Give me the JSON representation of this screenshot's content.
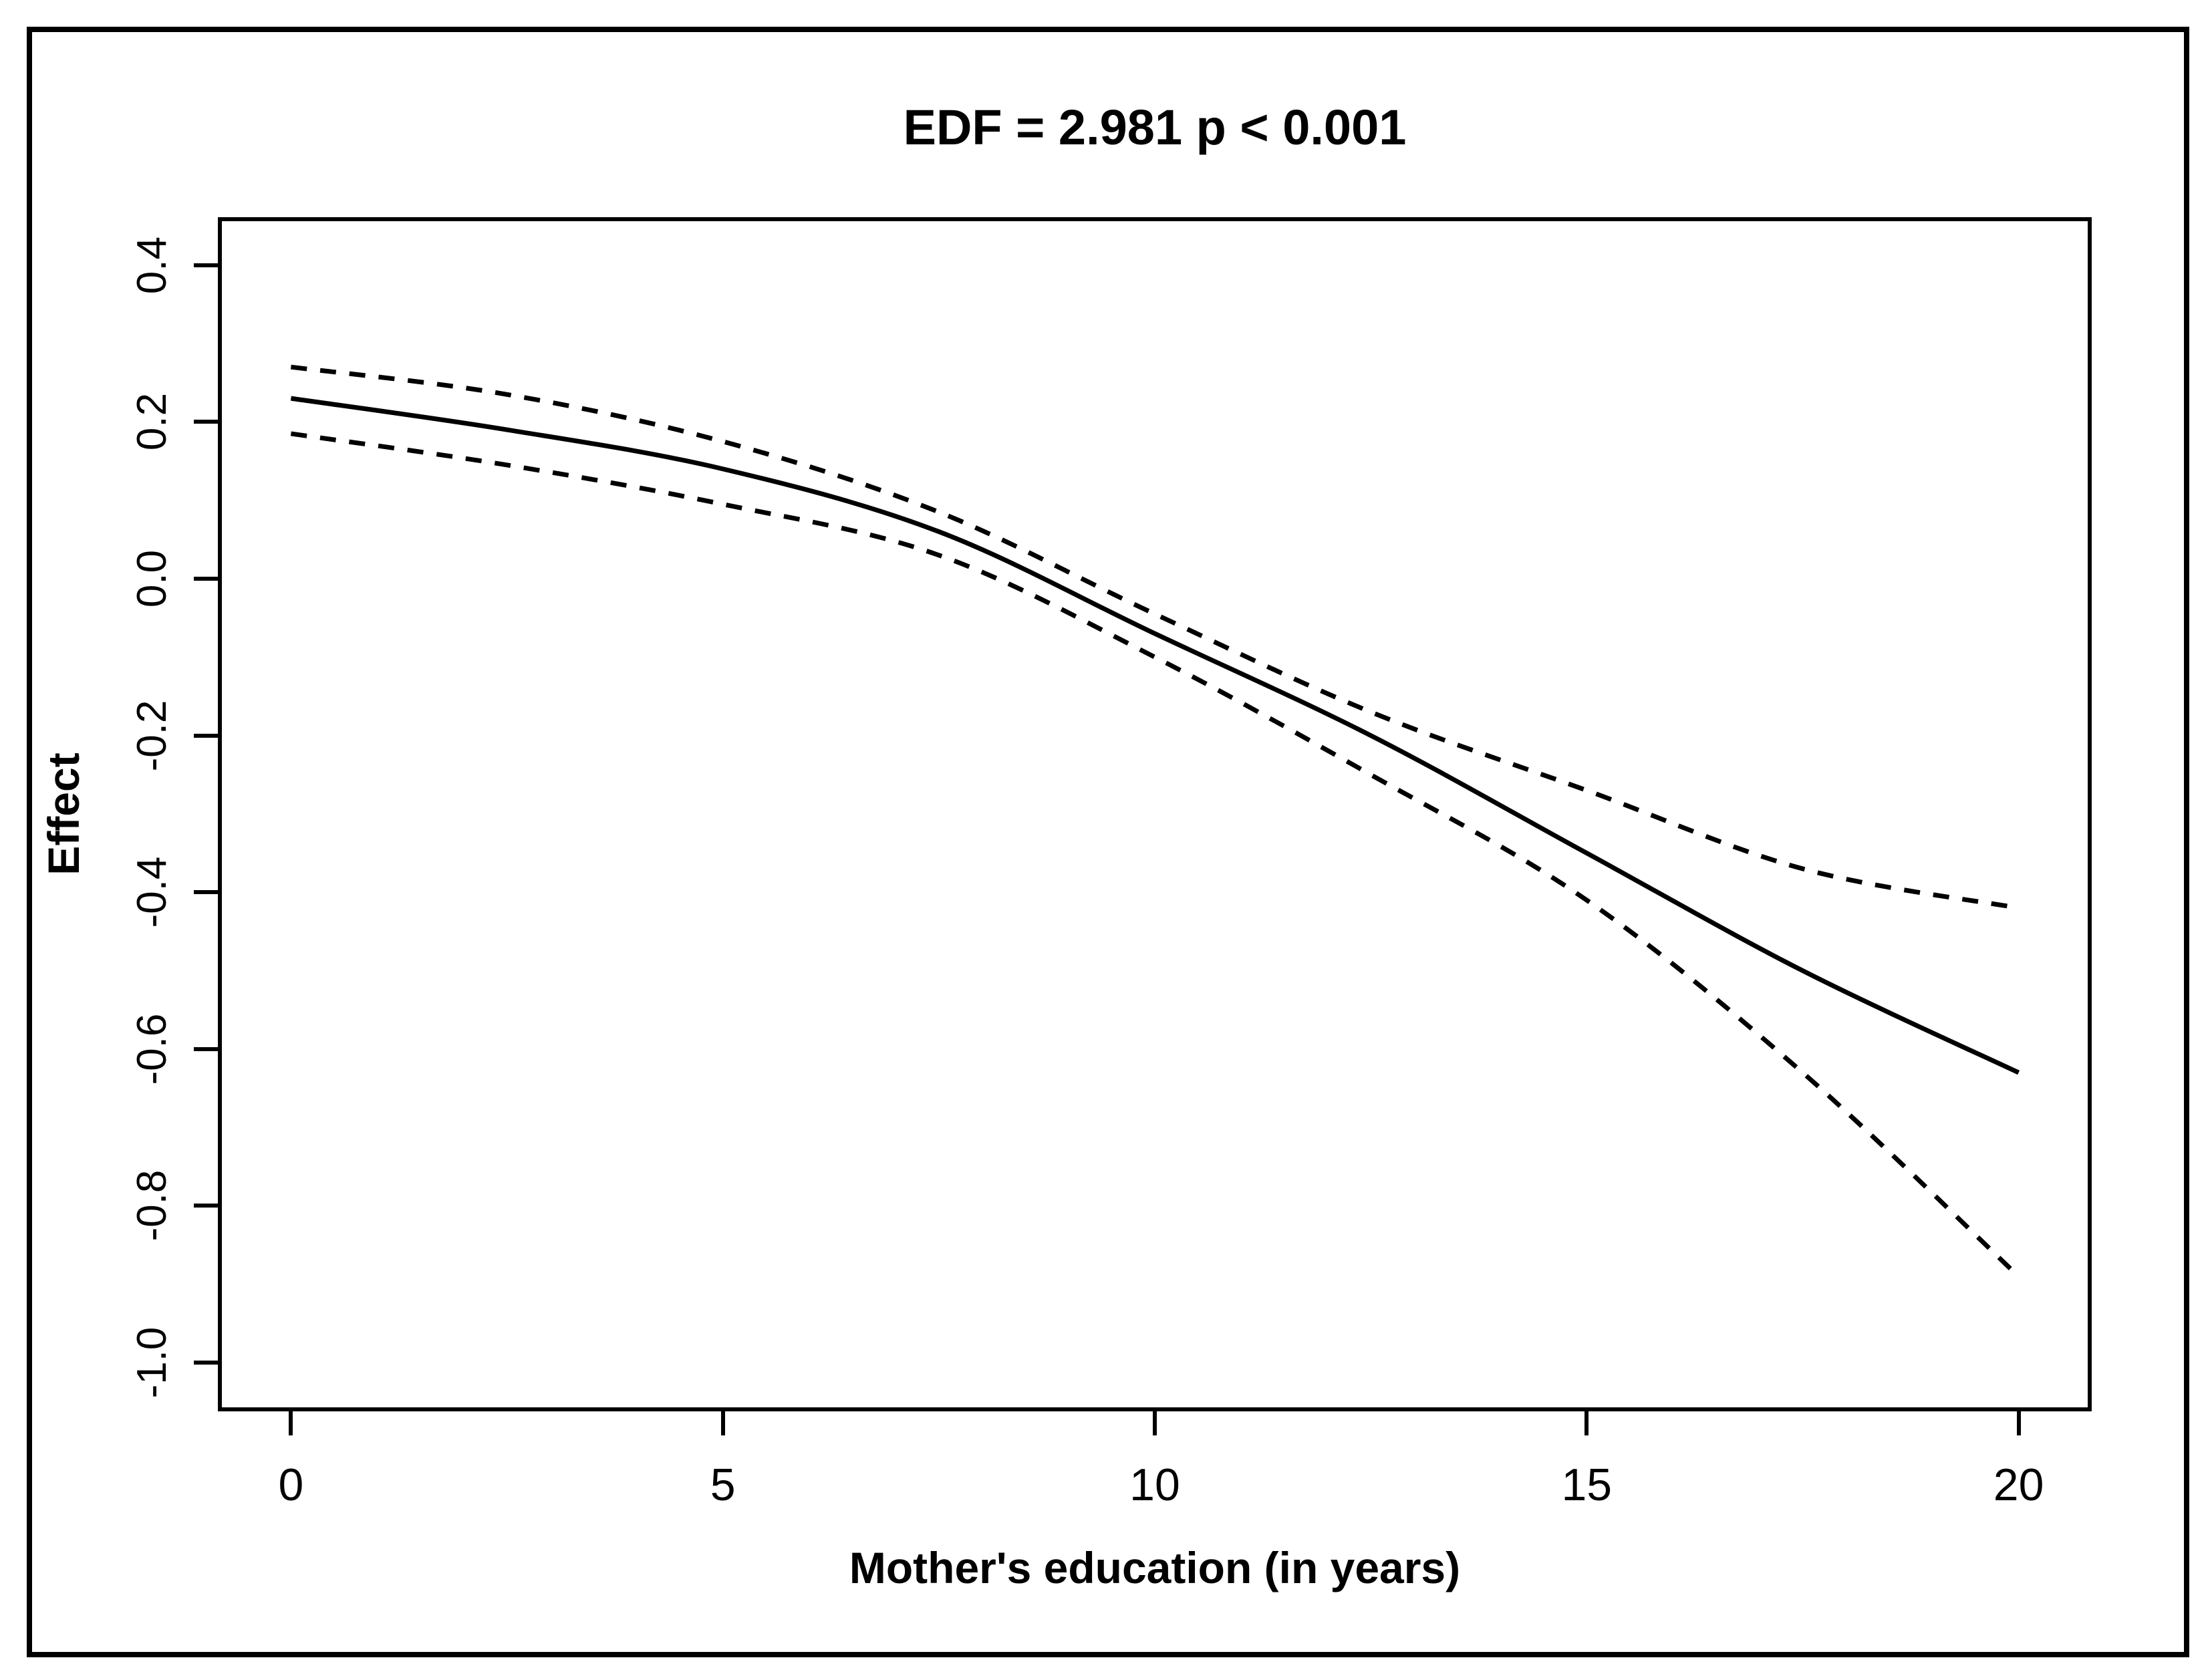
{
  "chart_data": {
    "type": "line",
    "title": "EDF = 2.981 p < 0.001",
    "xlabel": "Mother's education (in years)",
    "ylabel": "Effect",
    "line_color": "#000000",
    "background_color": "#ffffff",
    "grid": false,
    "legend": false,
    "xlim": [
      -0.8,
      20.8
    ],
    "ylim": [
      -1.057,
      0.456
    ],
    "x_ticks": [
      0,
      5,
      10,
      15,
      20
    ],
    "x_tick_labels": [
      "0",
      "5",
      "10",
      "15",
      "20"
    ],
    "y_ticks": [
      0.4,
      0.2,
      0.0,
      -0.2,
      -0.4,
      -0.6,
      -0.8,
      -1.0
    ],
    "y_tick_labels": [
      "0.4",
      "0.2",
      "0.0",
      "-0.2",
      "-0.4",
      "-0.6",
      "-0.8",
      "-1.0"
    ],
    "x": [
      0,
      2.5,
      5,
      7.5,
      10,
      12.5,
      15,
      17.5,
      20
    ],
    "series": [
      {
        "name": "smooth-estimate",
        "style": "solid",
        "values": [
          0.23,
          0.19,
          0.14,
          0.06,
          -0.07,
          -0.2,
          -0.35,
          -0.5,
          -0.63
        ]
      },
      {
        "name": "upper-confidence-band",
        "style": "dashed",
        "values": [
          0.27,
          0.235,
          0.175,
          0.085,
          -0.045,
          -0.17,
          -0.27,
          -0.37,
          -0.42
        ]
      },
      {
        "name": "lower-confidence-band",
        "style": "dashed",
        "values": [
          0.185,
          0.145,
          0.095,
          0.03,
          -0.1,
          -0.25,
          -0.41,
          -0.63,
          -0.89
        ]
      }
    ]
  }
}
